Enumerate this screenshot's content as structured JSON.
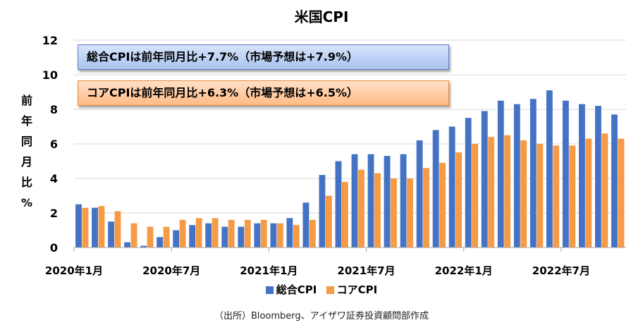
{
  "title": "米国CPI",
  "ylabel_chars": [
    "前",
    "年",
    "同",
    "月",
    "比",
    "%"
  ],
  "annotations": {
    "headline": "総合CPIは前年同月比+7.7%（市場予想は+7.9%）",
    "core": "コアCPIは前年同月比+6.3%（市場予想は+6.5%）"
  },
  "source": "（出所）Bloomberg、アイザワ証券投資顧問部作成",
  "chart_data": {
    "type": "bar",
    "title": "米国CPI",
    "ylabel": "前年同月比%",
    "ylim": [
      0,
      12
    ],
    "yticks": [
      0,
      2,
      4,
      6,
      8,
      10,
      12
    ],
    "xtick_labels": [
      {
        "index": 0,
        "label": "2020年1月"
      },
      {
        "index": 6,
        "label": "2020年7月"
      },
      {
        "index": 12,
        "label": "2021年1月"
      },
      {
        "index": 18,
        "label": "2021年7月"
      },
      {
        "index": 24,
        "label": "2022年1月"
      },
      {
        "index": 30,
        "label": "2022年7月"
      }
    ],
    "categories": [
      "2020-01",
      "2020-02",
      "2020-03",
      "2020-04",
      "2020-05",
      "2020-06",
      "2020-07",
      "2020-08",
      "2020-09",
      "2020-10",
      "2020-11",
      "2020-12",
      "2021-01",
      "2021-02",
      "2021-03",
      "2021-04",
      "2021-05",
      "2021-06",
      "2021-07",
      "2021-08",
      "2021-09",
      "2021-10",
      "2021-11",
      "2021-12",
      "2022-01",
      "2022-02",
      "2022-03",
      "2022-04",
      "2022-05",
      "2022-06",
      "2022-07",
      "2022-08",
      "2022-09",
      "2022-10"
    ],
    "grid": true,
    "legend_position": "bottom",
    "colors": {
      "headline": "#4472c4",
      "core": "#f59a45",
      "grid": "#d9d9d9"
    },
    "series": [
      {
        "name": "総合CPI",
        "values": [
          2.5,
          2.3,
          1.5,
          0.3,
          0.1,
          0.6,
          1.0,
          1.3,
          1.4,
          1.2,
          1.2,
          1.4,
          1.4,
          1.7,
          2.6,
          4.2,
          5.0,
          5.4,
          5.4,
          5.3,
          5.4,
          6.2,
          6.8,
          7.0,
          7.5,
          7.9,
          8.5,
          8.3,
          8.6,
          9.1,
          8.5,
          8.3,
          8.2,
          7.7
        ]
      },
      {
        "name": "コアCPI",
        "values": [
          2.3,
          2.4,
          2.1,
          1.4,
          1.2,
          1.2,
          1.6,
          1.7,
          1.7,
          1.6,
          1.6,
          1.6,
          1.4,
          1.3,
          1.6,
          3.0,
          3.8,
          4.5,
          4.3,
          4.0,
          4.0,
          4.6,
          4.9,
          5.5,
          6.0,
          6.4,
          6.5,
          6.2,
          6.0,
          5.9,
          5.9,
          6.3,
          6.6,
          6.3
        ]
      }
    ]
  }
}
